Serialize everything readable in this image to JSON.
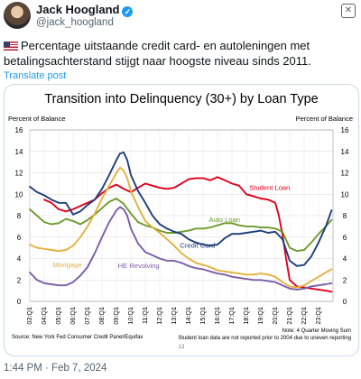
{
  "header": {
    "display_name": "Jack Hoogland",
    "handle": "@jack_hoogland",
    "verified_icon": "check-badge-icon",
    "close_icon": "close-icon"
  },
  "tweet": {
    "flag_icon": "us-flag-icon",
    "text": "Percentage uitstaande credit card- en autoleningen met betalingsachterstand stijgt naar hoogste niveau sinds 2011.",
    "translate_label": "Translate post",
    "timestamp": "1:44 PM · Feb 7, 2024"
  },
  "chart_data": {
    "type": "line",
    "title": "Transition into Delinquency (30+) by Loan Type",
    "ylabel_left": "Percent of Balance",
    "ylabel_right": "Percent of Balance",
    "ylim": [
      0,
      16
    ],
    "yticks": [
      "0",
      "2",
      "4",
      "6",
      "8",
      "10",
      "12",
      "14",
      "16"
    ],
    "xlim": [
      2003.0,
      2024.0
    ],
    "xticks": [
      "03:Q1",
      "04:Q1",
      "05:Q1",
      "06:Q1",
      "07:Q1",
      "08:Q1",
      "09:Q1",
      "10:Q1",
      "11:Q1",
      "12:Q1",
      "13:Q1",
      "14:Q1",
      "15:Q1",
      "16:Q1",
      "17:Q1",
      "18:Q1",
      "19:Q1",
      "20:Q1",
      "21:Q1",
      "22:Q1",
      "23:Q1"
    ],
    "grid": true,
    "source": "Source: New York Fed Consumer Credit Panel/Equifax",
    "notes": [
      "Note: 4 Quarter Moving Sum",
      "Student loan data are not reported prior to 2004 due to uneven reporting"
    ],
    "page_number": "13",
    "series": [
      {
        "name": "Student Loan",
        "color": "#e0001b",
        "x": [
          2004.0,
          2004.5,
          2005.0,
          2005.5,
          2006.0,
          2006.5,
          2007.0,
          2007.5,
          2008.0,
          2008.5,
          2009.0,
          2009.5,
          2010.0,
          2010.5,
          2011.0,
          2011.5,
          2012.0,
          2012.5,
          2013.0,
          2013.5,
          2014.0,
          2014.5,
          2015.0,
          2015.5,
          2016.0,
          2016.5,
          2017.0,
          2017.5,
          2018.0,
          2018.5,
          2019.0,
          2019.5,
          2020.0,
          2020.25,
          2020.5,
          2020.75,
          2021.0,
          2021.5,
          2022.0,
          2022.5,
          2023.0,
          2023.5,
          2023.9
        ],
        "y": [
          9.5,
          9.2,
          8.6,
          8.4,
          8.6,
          8.9,
          9.2,
          9.5,
          10.1,
          10.6,
          10.9,
          10.5,
          10.2,
          10.6,
          11.0,
          10.8,
          10.6,
          10.5,
          10.6,
          11.0,
          11.4,
          11.5,
          11.5,
          11.3,
          11.6,
          11.3,
          11.0,
          10.8,
          10.0,
          9.8,
          9.6,
          9.5,
          9.2,
          8.0,
          6.2,
          4.0,
          2.0,
          1.4,
          1.3,
          1.2,
          1.1,
          1.0,
          0.9
        ]
      },
      {
        "name": "Auto Loan",
        "color": "#6e9a2c",
        "x": [
          2003.0,
          2003.5,
          2004.0,
          2004.5,
          2005.0,
          2005.5,
          2006.0,
          2006.5,
          2007.0,
          2007.5,
          2008.0,
          2008.5,
          2009.0,
          2009.5,
          2010.0,
          2010.5,
          2011.0,
          2011.5,
          2012.0,
          2012.5,
          2013.0,
          2013.5,
          2014.0,
          2014.5,
          2015.0,
          2015.5,
          2016.0,
          2016.5,
          2017.0,
          2017.5,
          2018.0,
          2018.5,
          2019.0,
          2019.5,
          2020.0,
          2020.5,
          2021.0,
          2021.5,
          2022.0,
          2022.5,
          2023.0,
          2023.5,
          2023.9
        ],
        "y": [
          8.6,
          8.0,
          7.4,
          7.2,
          7.3,
          7.7,
          7.5,
          7.2,
          7.6,
          8.1,
          8.7,
          9.3,
          9.6,
          9.1,
          8.2,
          7.4,
          7.1,
          6.9,
          6.6,
          6.4,
          6.4,
          6.5,
          6.6,
          6.8,
          6.8,
          6.9,
          7.1,
          7.3,
          7.3,
          7.1,
          7.0,
          7.0,
          6.9,
          6.9,
          6.8,
          6.5,
          5.0,
          4.7,
          4.8,
          5.5,
          6.3,
          7.0,
          7.6
        ]
      },
      {
        "name": "Credit Card",
        "color": "#1f3d7a",
        "x": [
          2003.0,
          2003.5,
          2004.0,
          2004.5,
          2005.0,
          2005.5,
          2006.0,
          2006.5,
          2007.0,
          2007.5,
          2008.0,
          2008.5,
          2009.0,
          2009.25,
          2009.5,
          2009.75,
          2010.0,
          2010.5,
          2011.0,
          2011.5,
          2012.0,
          2012.5,
          2013.0,
          2013.5,
          2014.0,
          2014.5,
          2015.0,
          2015.5,
          2016.0,
          2016.5,
          2017.0,
          2017.5,
          2018.0,
          2018.5,
          2019.0,
          2019.5,
          2020.0,
          2020.5,
          2021.0,
          2021.5,
          2022.0,
          2022.5,
          2023.0,
          2023.5,
          2023.9
        ],
        "y": [
          10.7,
          10.2,
          9.9,
          9.5,
          9.2,
          9.2,
          8.1,
          8.4,
          9.0,
          9.5,
          10.5,
          11.8,
          13.2,
          13.8,
          13.9,
          13.2,
          11.8,
          10.3,
          9.2,
          8.0,
          7.2,
          6.8,
          6.5,
          6.3,
          5.8,
          5.5,
          5.3,
          5.2,
          5.3,
          5.9,
          6.3,
          6.3,
          6.4,
          6.5,
          6.6,
          6.4,
          6.5,
          5.8,
          3.8,
          3.3,
          3.4,
          4.2,
          5.5,
          7.0,
          8.5
        ]
      },
      {
        "name": "Mortgage",
        "color": "#e2b23e",
        "x": [
          2003.0,
          2003.5,
          2004.0,
          2004.5,
          2005.0,
          2005.5,
          2006.0,
          2006.5,
          2007.0,
          2007.5,
          2008.0,
          2008.5,
          2009.0,
          2009.25,
          2009.5,
          2009.75,
          2010.0,
          2010.5,
          2011.0,
          2011.5,
          2012.0,
          2012.5,
          2013.0,
          2013.5,
          2014.0,
          2014.5,
          2015.0,
          2015.5,
          2016.0,
          2016.5,
          2017.0,
          2017.5,
          2018.0,
          2018.5,
          2019.0,
          2019.5,
          2020.0,
          2020.5,
          2021.0,
          2021.5,
          2022.0,
          2022.5,
          2023.0,
          2023.5,
          2023.9
        ],
        "y": [
          5.3,
          5.0,
          4.9,
          4.8,
          4.7,
          4.8,
          5.2,
          6.0,
          7.0,
          8.2,
          9.6,
          10.8,
          12.0,
          12.5,
          12.2,
          11.5,
          10.3,
          8.8,
          7.5,
          6.9,
          6.4,
          5.8,
          5.2,
          4.5,
          4.0,
          3.6,
          3.4,
          3.2,
          2.9,
          2.8,
          2.7,
          2.6,
          2.5,
          2.5,
          2.6,
          2.5,
          2.3,
          1.8,
          1.4,
          1.3,
          1.5,
          1.9,
          2.3,
          2.7,
          3.0
        ]
      },
      {
        "name": "HE Revolving",
        "color": "#7b5ea7",
        "x": [
          2003.0,
          2003.5,
          2004.0,
          2004.5,
          2005.0,
          2005.5,
          2006.0,
          2006.5,
          2007.0,
          2007.5,
          2008.0,
          2008.5,
          2009.0,
          2009.25,
          2009.5,
          2009.75,
          2010.0,
          2010.5,
          2011.0,
          2011.5,
          2012.0,
          2012.5,
          2013.0,
          2013.5,
          2014.0,
          2014.5,
          2015.0,
          2015.5,
          2016.0,
          2016.5,
          2017.0,
          2017.5,
          2018.0,
          2018.5,
          2019.0,
          2019.5,
          2020.0,
          2020.5,
          2021.0,
          2021.5,
          2022.0,
          2022.5,
          2023.0,
          2023.5,
          2023.9
        ],
        "y": [
          2.7,
          2.0,
          1.7,
          1.6,
          1.5,
          1.5,
          1.8,
          2.4,
          3.2,
          4.5,
          6.0,
          7.4,
          8.5,
          8.8,
          8.6,
          8.0,
          6.8,
          5.4,
          4.6,
          4.3,
          4.0,
          3.8,
          3.8,
          3.6,
          3.3,
          3.1,
          3.0,
          2.8,
          2.6,
          2.5,
          2.3,
          2.2,
          2.1,
          2.0,
          2.0,
          1.9,
          1.8,
          1.5,
          1.2,
          1.1,
          1.2,
          1.4,
          1.5,
          1.6,
          1.7
        ]
      }
    ],
    "labels": [
      {
        "text": "Student Loan",
        "series": 0,
        "x": 2018.2,
        "y": 10.4
      },
      {
        "text": "Auto Loan",
        "series": 1,
        "x": 2015.4,
        "y": 7.4
      },
      {
        "text": "Credit Card",
        "series": 2,
        "x": 2013.4,
        "y": 5.0
      },
      {
        "text": "Mortgage",
        "series": 3,
        "x": 2004.6,
        "y": 3.2
      },
      {
        "text": "HE Revolving",
        "series": 4,
        "x": 2009.1,
        "y": 3.1
      }
    ]
  }
}
